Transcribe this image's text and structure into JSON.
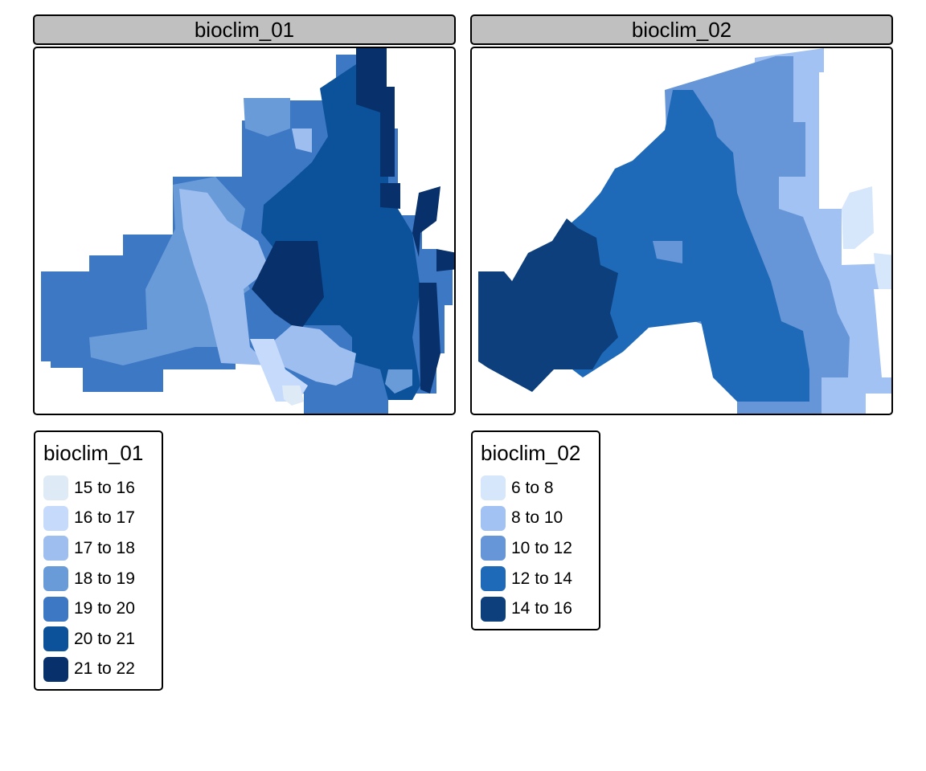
{
  "facets": [
    {
      "title": "bioclim_01",
      "legend": {
        "title": "bioclim_01",
        "items": [
          {
            "label": "15 to 16",
            "color": "#deebf7"
          },
          {
            "label": "16 to 17",
            "color": "#c6dbfb"
          },
          {
            "label": "17 to 18",
            "color": "#9ebeef"
          },
          {
            "label": "18 to 19",
            "color": "#6a9bd9"
          },
          {
            "label": "19 to 20",
            "color": "#3c78c4"
          },
          {
            "label": "20 to 21",
            "color": "#0c529a"
          },
          {
            "label": "21 to 22",
            "color": "#08306b"
          }
        ]
      }
    },
    {
      "title": "bioclim_02",
      "legend": {
        "title": "bioclim_02",
        "items": [
          {
            "label": "6 to 8",
            "color": "#d6e6fb"
          },
          {
            "label": "8 to 10",
            "color": "#a2c2f3"
          },
          {
            "label": "10 to 12",
            "color": "#6696d7"
          },
          {
            "label": "12 to 14",
            "color": "#1f6ab8"
          },
          {
            "label": "14 to 16",
            "color": "#0c3f7c"
          }
        ]
      }
    }
  ]
}
